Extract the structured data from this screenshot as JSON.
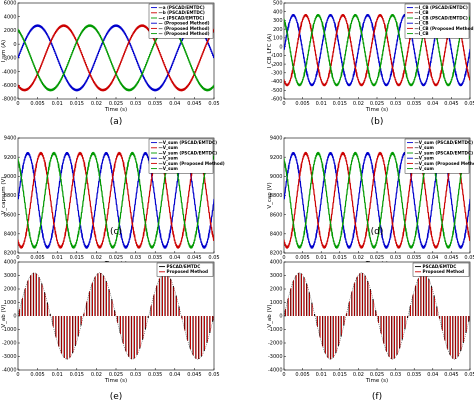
{
  "chart_data": [
    {
      "id": "a",
      "type": "line",
      "caption": "(a)",
      "xlabel": "Time (s)",
      "ylabel": "I_sm (A)",
      "ylim": [
        -8000,
        6000
      ],
      "xlim": [
        0,
        0.05
      ],
      "xticks": [
        0,
        0.005,
        0.01,
        0.015,
        0.02,
        0.025,
        0.03,
        0.035,
        0.04,
        0.045,
        0.05
      ],
      "yticks": [
        -8000,
        -6000,
        -4000,
        -2000,
        0,
        2000,
        4000,
        6000
      ],
      "legend_position": "top-right",
      "legend": [
        "—a (PSCAD/EMTDC)",
        "—b (PSCAD/EMTDC)",
        "—c (PSCAD/EMTDC)",
        "— (Proposed Method)",
        "— (Proposed Method)",
        "— (Proposed Method)"
      ],
      "series": [
        {
          "color": "#0000cc",
          "offset": -2000,
          "amp": 4700,
          "phase": 0,
          "freq": 50
        },
        {
          "color": "#cc0000",
          "offset": -2000,
          "amp": 4700,
          "phase": -2.094,
          "freq": 50
        },
        {
          "color": "#009900",
          "offset": -2000,
          "amp": 4700,
          "phase": 2.094,
          "freq": 50
        }
      ]
    },
    {
      "id": "b",
      "type": "line",
      "caption": "(b)",
      "xlabel": "Time (s)",
      "ylabel": "I_CB_LFC (A)",
      "ylim": [
        -600,
        500
      ],
      "xlim": [
        0,
        0.05
      ],
      "xticks": [
        0,
        0.005,
        0.01,
        0.015,
        0.02,
        0.025,
        0.03,
        0.035,
        0.04,
        0.045,
        0.05
      ],
      "yticks": [
        -600,
        -500,
        -400,
        -300,
        -200,
        -100,
        0,
        100,
        200,
        300,
        400,
        500
      ],
      "legend_position": "top-right",
      "legend": [
        "—I_CB (PSCAD/EMTDC)",
        "—I_CB",
        "—I_CB (PSCAD/EMTDC)",
        "—I_CB",
        "—I_CB (Proposed Method)",
        "—I_CB"
      ],
      "series": [
        {
          "color": "#0000cc",
          "offset": -40,
          "amp": 400,
          "phase": 0,
          "freq": 100
        },
        {
          "color": "#cc0000",
          "offset": -40,
          "amp": 400,
          "phase": -2.094,
          "freq": 100
        },
        {
          "color": "#009900",
          "offset": -40,
          "amp": 400,
          "phase": 2.094,
          "freq": 100
        }
      ]
    },
    {
      "id": "c",
      "type": "line",
      "caption": "(c)",
      "xlabel": "Time (s)",
      "ylabel": "V_capsum (V)",
      "ylim": [
        8200,
        9400
      ],
      "xlim": [
        0,
        0.05
      ],
      "xticks": [
        0,
        0.005,
        0.01,
        0.015,
        0.02,
        0.025,
        0.03,
        0.035,
        0.04,
        0.045,
        0.05
      ],
      "yticks": [
        8200,
        8400,
        8600,
        8800,
        9000,
        9200,
        9400
      ],
      "legend_position": "top-right",
      "legend": [
        "—V_sum (PSCAD/EMTDC)",
        "—V_sum",
        "—V_sum (PSCAD/EMTDC)",
        "—V_sum",
        "—V_sum (Proposed Method)",
        "—V_sum"
      ],
      "series": [
        {
          "color": "#0000cc",
          "offset": 8750,
          "amp": 490,
          "phase": 0,
          "freq": 100
        },
        {
          "color": "#cc0000",
          "offset": 8750,
          "amp": 490,
          "phase": -2.094,
          "freq": 100
        },
        {
          "color": "#009900",
          "offset": 8750,
          "amp": 490,
          "phase": 2.094,
          "freq": 100
        }
      ]
    },
    {
      "id": "d",
      "type": "line",
      "caption": "(d)",
      "xlabel": "Time (s)",
      "ylabel": "V_cap (V)",
      "ylim": [
        8200,
        9400
      ],
      "xlim": [
        0,
        0.05
      ],
      "xticks": [
        0,
        0.005,
        0.01,
        0.015,
        0.02,
        0.025,
        0.03,
        0.035,
        0.04,
        0.045,
        0.05
      ],
      "yticks": [
        8200,
        8400,
        8600,
        8800,
        9000,
        9200,
        9400
      ],
      "legend_position": "top-right",
      "legend": [
        "—V_sum (PSCAD/EMTDC)",
        "—V_sum",
        "—V_sum (PSCAD/EMTDC)",
        "—V_sum",
        "—V_sum (Proposed Method)",
        "—V_sum"
      ],
      "series": [
        {
          "color": "#0000cc",
          "offset": 8750,
          "amp": 490,
          "phase": 0,
          "freq": 100
        },
        {
          "color": "#cc0000",
          "offset": 8750,
          "amp": 490,
          "phase": -2.094,
          "freq": 100
        },
        {
          "color": "#009900",
          "offset": 8750,
          "amp": 490,
          "phase": 2.094,
          "freq": 100
        }
      ]
    },
    {
      "id": "e",
      "type": "line",
      "caption": "(e)",
      "xlabel": "Time (s)",
      "ylabel": "V_ab (V)",
      "ylim": [
        -4000,
        4000
      ],
      "xlim": [
        0,
        0.05
      ],
      "xticks": [
        0,
        0.005,
        0.01,
        0.015,
        0.02,
        0.025,
        0.03,
        0.035,
        0.04,
        0.045,
        0.05
      ],
      "yticks": [
        -4000,
        -3000,
        -2000,
        -1000,
        0,
        1000,
        2000,
        3000,
        4000
      ],
      "legend_position": "top-right",
      "legend": [
        "PSCAD/EMTDC",
        "Proposed Method"
      ],
      "pwm": {
        "amp": 3200,
        "freq": 60,
        "pulses": 70,
        "colors": [
          "#000000",
          "#cc0000"
        ]
      }
    },
    {
      "id": "f",
      "type": "line",
      "caption": "(f)",
      "xlabel": "Time (s)",
      "ylabel": "V_ab (V)",
      "ylim": [
        -4000,
        4000
      ],
      "xlim": [
        0,
        0.05
      ],
      "xticks": [
        0,
        0.005,
        0.01,
        0.015,
        0.02,
        0.025,
        0.03,
        0.035,
        0.04,
        0.045,
        0.05
      ],
      "yticks": [
        -4000,
        -3000,
        -2000,
        -1000,
        0,
        1000,
        2000,
        3000,
        4000
      ],
      "legend_position": "top-right",
      "legend": [
        "PSCAD/EMTDC",
        "Proposed Method"
      ],
      "pwm": {
        "amp": 3200,
        "freq": 60,
        "pulses": 70,
        "colors": [
          "#000000",
          "#cc0000"
        ]
      }
    }
  ]
}
